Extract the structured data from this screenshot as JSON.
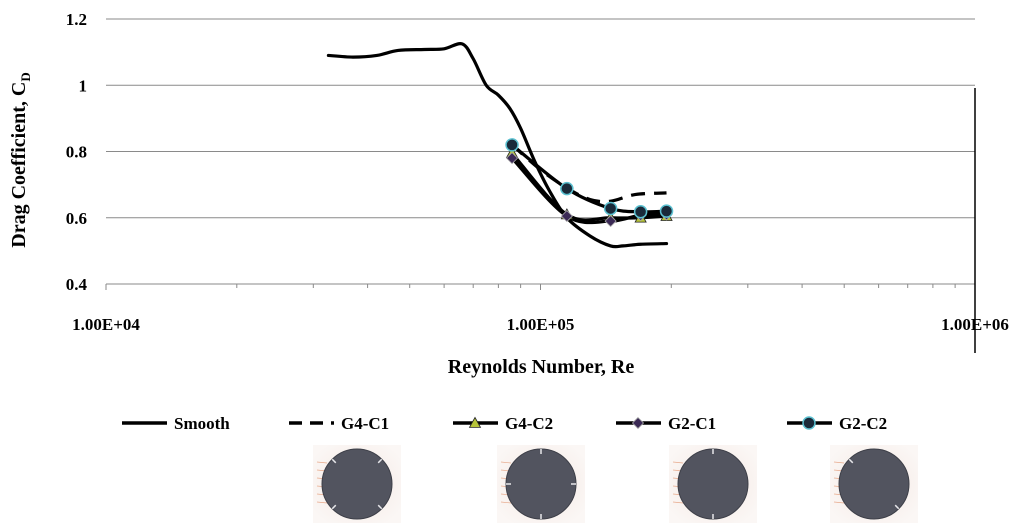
{
  "chart_data": {
    "type": "line",
    "title": "",
    "xlabel": "Reynolds Number, Re",
    "ylabel": "Drag Coefficient, C",
    "ylabel_subscript": "D",
    "x_scale": "log",
    "xlim": [
      10000,
      1000000
    ],
    "ylim": [
      0.4,
      1.2
    ],
    "x_ticks": [
      "1.00E+04",
      "1.00E+05",
      "1.00E+06"
    ],
    "x_tick_values": [
      10000,
      100000,
      1000000
    ],
    "y_ticks": [
      "0.4",
      "0.6",
      "0.8",
      "1",
      "1.2"
    ],
    "y_tick_values": [
      0.4,
      0.6,
      0.8,
      1.0,
      1.2
    ],
    "grid": "horizontal",
    "legend_position": "bottom",
    "series": [
      {
        "name": "Smooth",
        "style": "solid",
        "marker": "none",
        "color": "#000000",
        "x": [
          32500,
          37000,
          42000,
          47000,
          54000,
          60000,
          66000,
          70000,
          75000,
          80000,
          85000,
          90000,
          97000,
          105000,
          115000,
          130000,
          145000,
          155000,
          170000,
          195000
        ],
        "y": [
          1.09,
          1.085,
          1.09,
          1.105,
          1.108,
          1.11,
          1.125,
          1.08,
          1.0,
          0.97,
          0.93,
          0.87,
          0.77,
          0.68,
          0.6,
          0.545,
          0.515,
          0.515,
          0.52,
          0.522
        ]
      },
      {
        "name": "G4-C1",
        "style": "dashed",
        "marker": "none",
        "color": "#000000",
        "x": [
          86000,
          100000,
          115000,
          130000,
          145000,
          165000,
          195000
        ],
        "y": [
          0.82,
          0.745,
          0.69,
          0.655,
          0.65,
          0.67,
          0.675
        ]
      },
      {
        "name": "G4-C2",
        "style": "solid",
        "marker": "triangle",
        "marker_fill": "#b7c43a",
        "color": "#000000",
        "x": [
          86000,
          115000,
          145000,
          170000,
          195000
        ],
        "y": [
          0.795,
          0.61,
          0.6,
          0.6,
          0.605
        ]
      },
      {
        "name": "G2-C1",
        "style": "solid",
        "marker": "diamond",
        "marker_fill": "#3b2a55",
        "color": "#000000",
        "x": [
          86000,
          115000,
          145000,
          170000,
          195000
        ],
        "y": [
          0.78,
          0.605,
          0.59,
          0.608,
          0.61
        ]
      },
      {
        "name": "G2-C2",
        "style": "solid",
        "marker": "circle",
        "marker_fill": "#1a2a3a",
        "marker_stroke": "#5bc0d0",
        "color": "#000000",
        "x": [
          86000,
          115000,
          145000,
          170000,
          195000
        ],
        "y": [
          0.82,
          0.688,
          0.628,
          0.618,
          0.62
        ]
      }
    ]
  },
  "legend_images": [
    "G4-C1",
    "G4-C2",
    "G2-C1",
    "G2-C2"
  ]
}
